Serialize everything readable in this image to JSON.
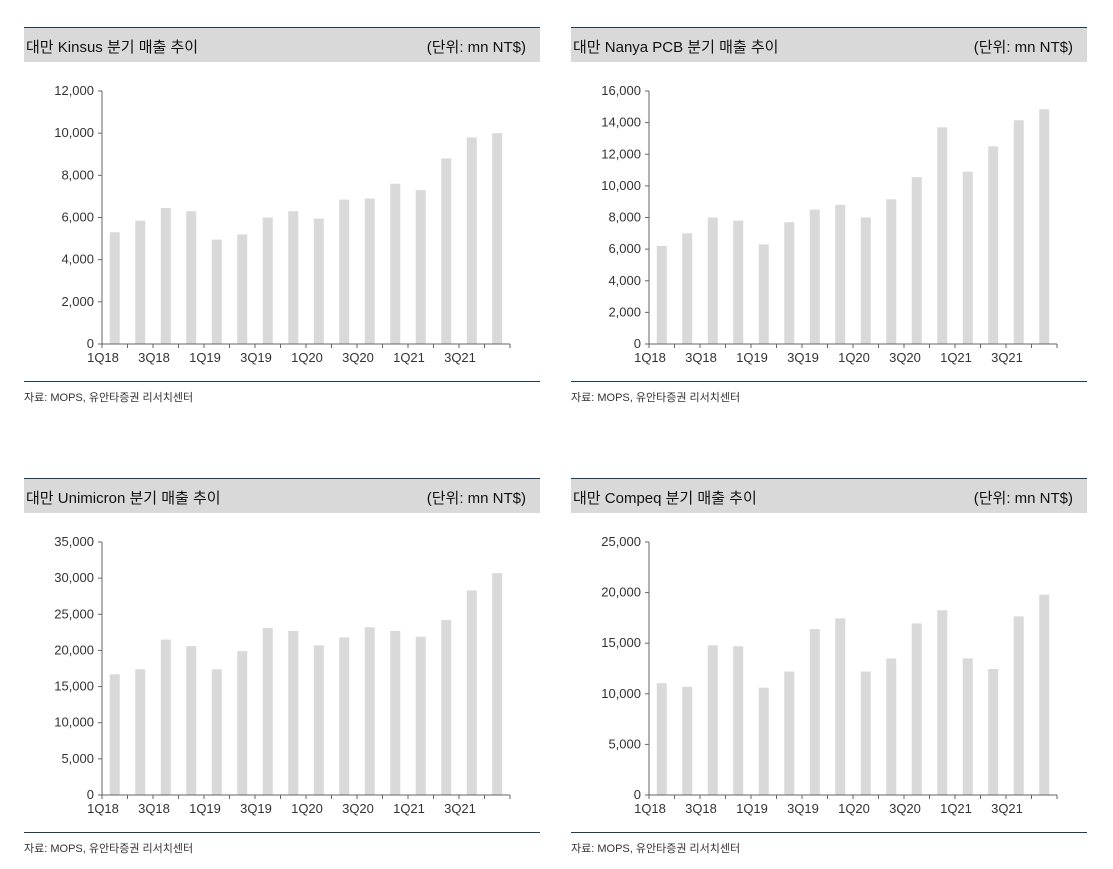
{
  "chart_data": [
    {
      "type": "bar",
      "title": "대만 Kinsus 분기 매출 추이",
      "unit": "(단위: mn NT$)",
      "source": "자료: MOPS, 유안타증권 리서치센터",
      "categories": [
        "1Q18",
        "2Q18",
        "3Q18",
        "4Q18",
        "1Q19",
        "2Q19",
        "3Q19",
        "4Q19",
        "1Q20",
        "2Q20",
        "3Q20",
        "4Q20",
        "1Q21",
        "2Q21",
        "3Q21",
        "4Q21"
      ],
      "x_tick_labels": [
        "1Q18",
        "3Q18",
        "1Q19",
        "3Q19",
        "1Q20",
        "3Q20",
        "1Q21",
        "3Q21"
      ],
      "values": [
        5300,
        5850,
        6450,
        6300,
        4950,
        5200,
        6000,
        6300,
        5950,
        6850,
        6900,
        7600,
        7300,
        8800,
        9800,
        10000
      ],
      "ylim": [
        0,
        12000
      ],
      "y_ticks": [
        0,
        2000,
        4000,
        6000,
        8000,
        10000,
        12000
      ],
      "y_tick_labels": [
        "0",
        "2,000",
        "4,000",
        "6,000",
        "8,000",
        "10,000",
        "12,000"
      ],
      "bar_color": "#d9d9d9",
      "grid": false
    },
    {
      "type": "bar",
      "title": "대만 Nanya PCB 분기 매출 추이",
      "unit": "(단위: mn NT$)",
      "source": "자료: MOPS, 유안타증권 리서치센터",
      "categories": [
        "1Q18",
        "2Q18",
        "3Q18",
        "4Q18",
        "1Q19",
        "2Q19",
        "3Q19",
        "4Q19",
        "1Q20",
        "2Q20",
        "3Q20",
        "4Q20",
        "1Q21",
        "2Q21",
        "3Q21",
        "4Q21"
      ],
      "x_tick_labels": [
        "1Q18",
        "3Q18",
        "1Q19",
        "3Q19",
        "1Q20",
        "3Q20",
        "1Q21",
        "3Q21"
      ],
      "values": [
        6200,
        7000,
        8000,
        7800,
        6300,
        7700,
        8500,
        8800,
        8000,
        9150,
        10550,
        13700,
        10900,
        12500,
        14150,
        14850
      ],
      "ylim": [
        0,
        16000
      ],
      "y_ticks": [
        0,
        2000,
        4000,
        6000,
        8000,
        10000,
        12000,
        14000,
        16000
      ],
      "y_tick_labels": [
        "0",
        "2,000",
        "4,000",
        "6,000",
        "8,000",
        "10,000",
        "12,000",
        "14,000",
        "16,000"
      ],
      "bar_color": "#d9d9d9",
      "grid": false
    },
    {
      "type": "bar",
      "title": "대만 Unimicron 분기 매출 추이",
      "unit": "(단위: mn NT$)",
      "source": "자료: MOPS, 유안타증권 리서치센터",
      "categories": [
        "1Q18",
        "2Q18",
        "3Q18",
        "4Q18",
        "1Q19",
        "2Q19",
        "3Q19",
        "4Q19",
        "1Q20",
        "2Q20",
        "3Q20",
        "4Q20",
        "1Q21",
        "2Q21",
        "3Q21",
        "4Q21"
      ],
      "x_tick_labels": [
        "1Q18",
        "3Q18",
        "1Q19",
        "3Q19",
        "1Q20",
        "3Q20",
        "1Q21",
        "3Q21"
      ],
      "values": [
        16700,
        17400,
        21500,
        20600,
        17400,
        19900,
        23100,
        22700,
        20700,
        21800,
        23200,
        22700,
        21900,
        24200,
        28300,
        30700
      ],
      "ylim": [
        0,
        35000
      ],
      "y_ticks": [
        0,
        5000,
        10000,
        15000,
        20000,
        25000,
        30000,
        35000
      ],
      "y_tick_labels": [
        "0",
        "5,000",
        "10,000",
        "15,000",
        "20,000",
        "25,000",
        "30,000",
        "35,000"
      ],
      "bar_color": "#d9d9d9",
      "grid": false
    },
    {
      "type": "bar",
      "title": "대만 Compeq 분기 매출 추이",
      "unit": "(단위: mn NT$)",
      "source": "자료: MOPS, 유안타증권 리서치센터",
      "categories": [
        "1Q18",
        "2Q18",
        "3Q18",
        "4Q18",
        "1Q19",
        "2Q19",
        "3Q19",
        "4Q19",
        "1Q20",
        "2Q20",
        "3Q20",
        "4Q20",
        "1Q21",
        "2Q21",
        "3Q21",
        "4Q21"
      ],
      "x_tick_labels": [
        "1Q18",
        "3Q18",
        "1Q19",
        "3Q19",
        "1Q20",
        "3Q20",
        "1Q21",
        "3Q21"
      ],
      "values": [
        11050,
        10700,
        14800,
        14700,
        10600,
        12200,
        16400,
        17450,
        12200,
        13500,
        16950,
        18250,
        13500,
        12450,
        17650,
        19800
      ],
      "ylim": [
        0,
        25000
      ],
      "y_ticks": [
        0,
        5000,
        10000,
        15000,
        20000,
        25000
      ],
      "y_tick_labels": [
        "0",
        "5,000",
        "10,000",
        "15,000",
        "20,000",
        "25,000"
      ],
      "bar_color": "#d9d9d9",
      "grid": false
    }
  ]
}
